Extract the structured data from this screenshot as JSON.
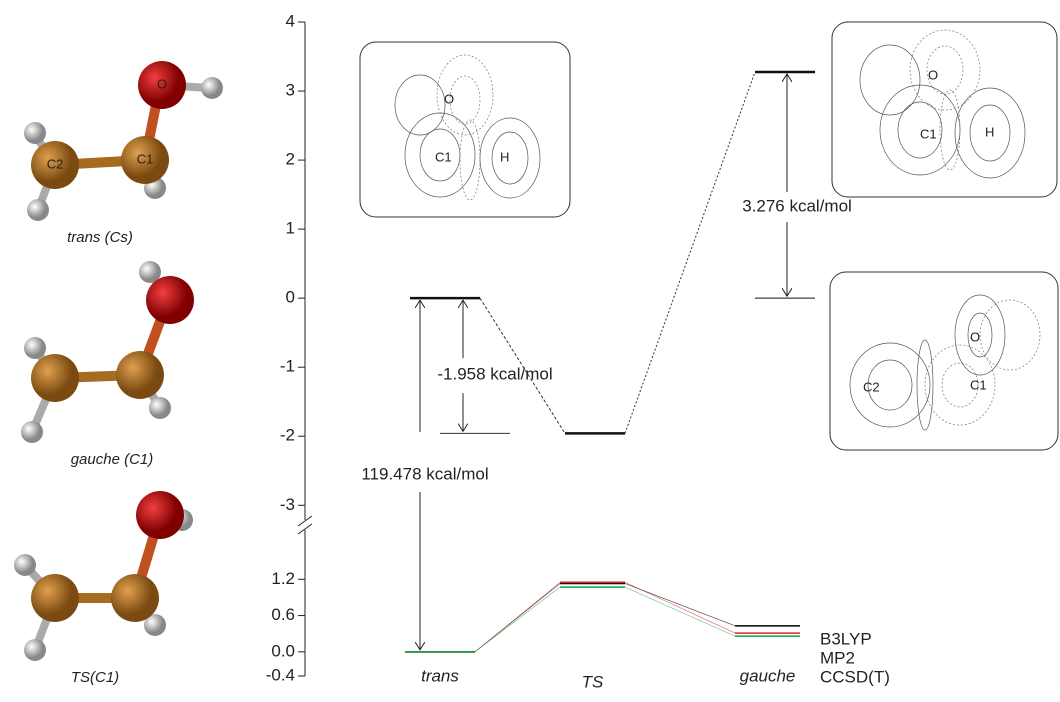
{
  "molecules": [
    {
      "label": "trans (Cs)",
      "atoms": [
        "O",
        "C1",
        "C2"
      ]
    },
    {
      "label": "gauche (C1)"
    },
    {
      "label": "TS(C1)"
    }
  ],
  "insets": [
    {
      "labels": [
        "O",
        "C1",
        "H"
      ]
    },
    {
      "labels": [
        "O",
        "C1",
        "H"
      ]
    },
    {
      "labels": [
        "O",
        "C2",
        "C1"
      ]
    }
  ],
  "chart_data": [
    {
      "type": "levels",
      "ylim": [
        -3.3,
        4
      ],
      "yticks": [
        -3,
        -2,
        -1,
        0,
        1,
        2,
        3,
        4
      ],
      "values": [
        0,
        -1.958,
        3.276,
        0
      ],
      "annotations": [
        "-1.958 kcal/mol",
        "3.276 kcal/mol",
        "119.478 kcal/mol"
      ]
    },
    {
      "type": "levels",
      "ylim": [
        -0.4,
        1.85
      ],
      "yticks": [
        -0.4,
        {
          "value": 0,
          "label": "0.0"
        },
        0.6,
        1.2
      ],
      "categories": [
        "trans",
        "TS",
        "gauche"
      ],
      "series": [
        {
          "name": "B3LYP",
          "color": "#000000",
          "values": [
            0,
            1.13,
            0.43
          ]
        },
        {
          "name": "MP2",
          "color": "#e02020",
          "values": [
            0,
            1.15,
            0.31
          ]
        },
        {
          "name": "CCSD(T)",
          "color": "#10a050",
          "values": [
            0,
            1.07,
            0.26
          ]
        }
      ]
    }
  ]
}
